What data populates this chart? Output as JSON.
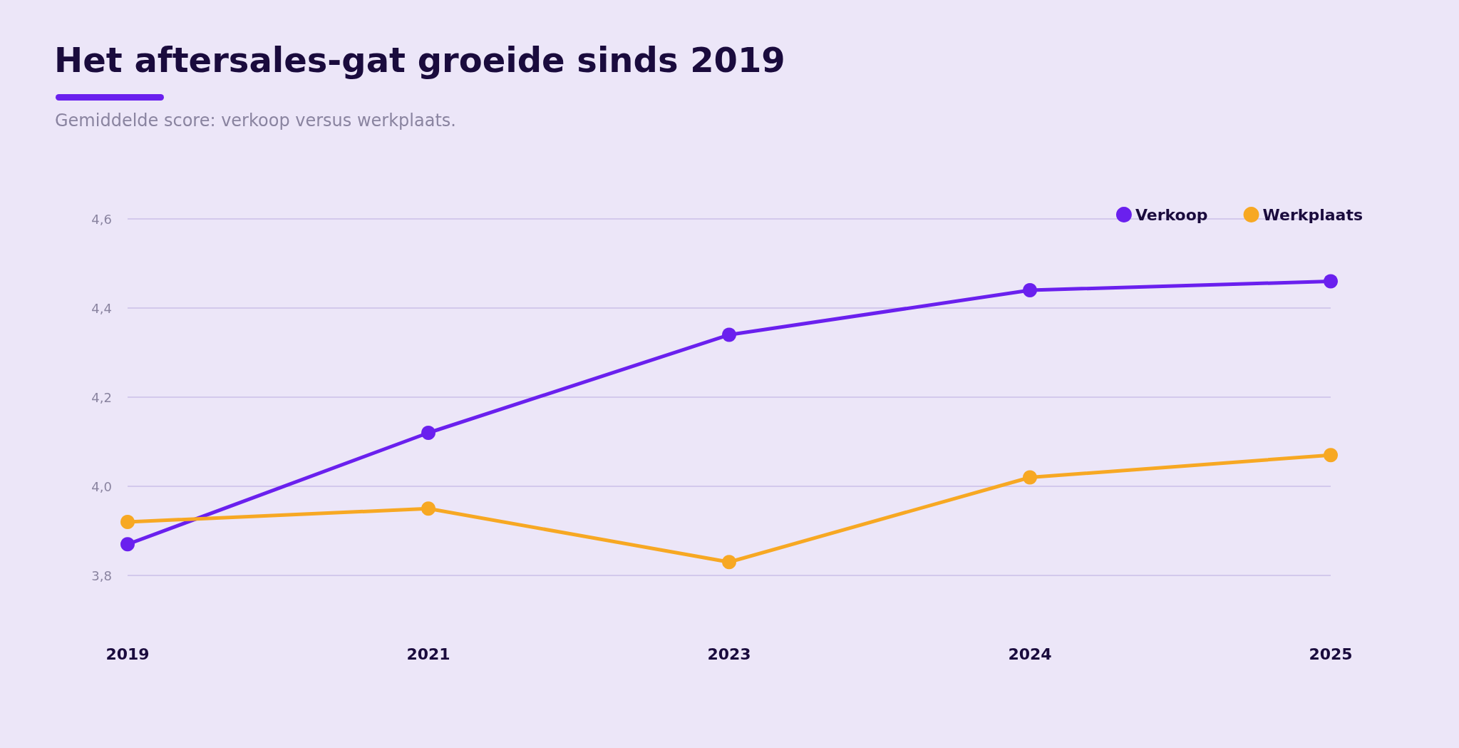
{
  "chart_data": {
    "type": "line",
    "title": "Het aftersales-gat groeide sinds 2019",
    "subtitle": "Gemiddelde score: verkoop versus werkplaats.",
    "categories": [
      "2019",
      "2021",
      "2023",
      "2024",
      "2025"
    ],
    "series": [
      {
        "name": "Verkoop",
        "color": "#6a20ee",
        "values": [
          3.87,
          4.12,
          4.34,
          4.44,
          4.46
        ]
      },
      {
        "name": "Werkplaats",
        "color": "#f7a823",
        "values": [
          3.92,
          3.95,
          3.83,
          4.02,
          4.07
        ]
      }
    ],
    "ylim": [
      3.8,
      4.6
    ],
    "yticks": [
      {
        "value": 3.8,
        "label": "3,8"
      },
      {
        "value": 4.0,
        "label": "4,0"
      },
      {
        "value": 4.2,
        "label": "4,2"
      },
      {
        "value": 4.4,
        "label": "4,4"
      },
      {
        "value": 4.6,
        "label": "4,6"
      }
    ],
    "grid": "y",
    "legend": "top right",
    "marker": "circle",
    "line_style": "solid"
  }
}
